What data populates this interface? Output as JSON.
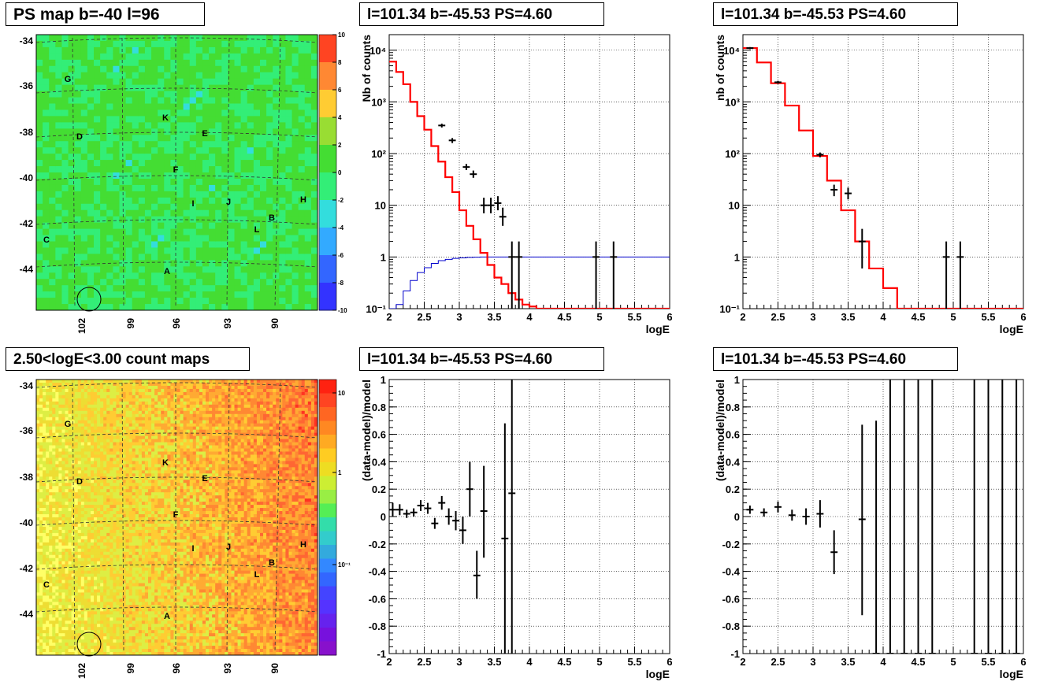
{
  "map_panels": [
    {
      "title": "PS map b=-40 l=96",
      "scale": "linear",
      "palette": "green",
      "colorbar_ticks": [
        "10",
        "8",
        "6",
        "4",
        "2",
        "0",
        "-2",
        "-4",
        "-6",
        "-8",
        "-10"
      ],
      "zlim": [
        -10,
        10
      ]
    },
    {
      "title": "2.50<logE<3.00 count maps",
      "scale": "log",
      "palette": "orange",
      "colorbar_ticks": [
        "10",
        "1",
        "10⁻¹"
      ],
      "zlim": [
        0.05,
        30
      ]
    }
  ],
  "map_axes": {
    "y_ticks": [
      "-34",
      "-36",
      "-38",
      "-40",
      "-42",
      "-44"
    ],
    "x_ticks": [
      "102",
      "99",
      "96",
      "93",
      "90"
    ],
    "source_labels": [
      "G",
      "K",
      "D",
      "E",
      "F",
      "I",
      "J",
      "H",
      "B",
      "L",
      "C",
      "A"
    ]
  },
  "spectrum_titles": [
    "l=101.34 b=-45.53 PS=4.60",
    "l=101.34 b=-45.53 PS=4.60",
    "l=101.34 b=-45.53 PS=4.60",
    "l=101.34 b=-45.53 PS=4.60"
  ],
  "chart_data": [
    {
      "type": "line",
      "title": "l=101.34 b=-45.53 PS=4.60",
      "xlabel": "logE",
      "ylabel": "Nb of counts",
      "xlim": [
        2,
        6
      ],
      "ylim": [
        0.1,
        20000
      ],
      "yscale": "log",
      "grid": true,
      "x_ticks": [
        "2",
        "2.5",
        "3",
        "3.5",
        "4",
        "4.5",
        "5",
        "5.5",
        "6"
      ],
      "y_ticks": [
        "10⁻¹",
        "1",
        "10",
        "10²",
        "10³",
        "10⁴"
      ],
      "model_color": "#ff0000",
      "background_color": "#0000cc",
      "model_steps": {
        "edges": [
          2.0,
          2.1,
          2.2,
          2.3,
          2.4,
          2.5,
          2.6,
          2.7,
          2.8,
          2.9,
          3.0,
          3.1,
          3.2,
          3.3,
          3.4,
          3.5,
          3.6,
          3.7,
          3.8,
          3.9,
          4.0,
          4.1,
          6.0
        ],
        "values": [
          6000,
          3800,
          2200,
          1000,
          530,
          290,
          140,
          70,
          35,
          18,
          8,
          4,
          2.2,
          1.2,
          0.7,
          0.4,
          0.3,
          0.2,
          0.15,
          0.12,
          0.11,
          0.1
        ]
      },
      "background_steps": {
        "edges": [
          2.0,
          2.1,
          2.2,
          2.3,
          2.4,
          2.5,
          2.6,
          2.7,
          2.8,
          2.9,
          3.0,
          3.1,
          3.2,
          3.3,
          3.4,
          3.5,
          6.0
        ],
        "values": [
          0.05,
          0.12,
          0.22,
          0.35,
          0.5,
          0.62,
          0.75,
          0.85,
          0.9,
          0.94,
          0.96,
          0.98,
          0.99,
          1.0,
          1.0,
          1.0
        ]
      },
      "data_points": [
        {
          "x": 2.75,
          "y": 350,
          "ylo": 320,
          "yhi": 380
        },
        {
          "x": 2.9,
          "y": 180,
          "ylo": 160,
          "yhi": 200
        },
        {
          "x": 3.1,
          "y": 55,
          "ylo": 48,
          "yhi": 63
        },
        {
          "x": 3.2,
          "y": 40,
          "ylo": 34,
          "yhi": 47
        },
        {
          "x": 3.35,
          "y": 10,
          "ylo": 7,
          "yhi": 14
        },
        {
          "x": 3.45,
          "y": 10,
          "ylo": 7,
          "yhi": 14
        },
        {
          "x": 3.55,
          "y": 11,
          "ylo": 8,
          "yhi": 15
        },
        {
          "x": 3.62,
          "y": 6,
          "ylo": 4,
          "yhi": 9
        },
        {
          "x": 3.75,
          "y": 1,
          "ylo": 0.1,
          "yhi": 2
        },
        {
          "x": 3.85,
          "y": 1,
          "ylo": 0.1,
          "yhi": 2
        },
        {
          "x": 4.95,
          "y": 1,
          "ylo": 0.1,
          "yhi": 2
        },
        {
          "x": 5.2,
          "y": 1,
          "ylo": 0.1,
          "yhi": 2
        }
      ]
    },
    {
      "type": "line",
      "title": "l=101.34 b=-45.53 PS=4.60",
      "xlabel": "logE",
      "ylabel": "nb of counts",
      "xlim": [
        2,
        6
      ],
      "ylim": [
        0.1,
        20000
      ],
      "yscale": "log",
      "grid": true,
      "x_ticks": [
        "2",
        "2.5",
        "3",
        "3.5",
        "4",
        "4.5",
        "5",
        "5.5",
        "6"
      ],
      "y_ticks": [
        "10⁻¹",
        "1",
        "10",
        "10²",
        "10³",
        "10⁴"
      ],
      "model_color": "#ff0000",
      "model_steps": {
        "edges": [
          2.0,
          2.2,
          2.4,
          2.6,
          2.8,
          3.0,
          3.2,
          3.4,
          3.6,
          3.8,
          4.0,
          4.2,
          6.0
        ],
        "values": [
          11000,
          5800,
          2300,
          850,
          280,
          90,
          30,
          8,
          2,
          0.6,
          0.25,
          0.1
        ]
      },
      "data_points": [
        {
          "x": 2.1,
          "y": 11000,
          "ylo": 10500,
          "yhi": 11500
        },
        {
          "x": 2.5,
          "y": 2400,
          "ylo": 2250,
          "yhi": 2550
        },
        {
          "x": 3.1,
          "y": 95,
          "ylo": 85,
          "yhi": 105
        },
        {
          "x": 3.3,
          "y": 20,
          "ylo": 15,
          "yhi": 25
        },
        {
          "x": 3.5,
          "y": 17,
          "ylo": 13,
          "yhi": 22
        },
        {
          "x": 3.7,
          "y": 2,
          "ylo": 0.6,
          "yhi": 3.5
        },
        {
          "x": 4.9,
          "y": 1,
          "ylo": 0.1,
          "yhi": 2
        },
        {
          "x": 5.1,
          "y": 1,
          "ylo": 0.1,
          "yhi": 2
        }
      ]
    },
    {
      "type": "scatter",
      "title": "l=101.34 b=-45.53 PS=4.60",
      "xlabel": "logE",
      "ylabel": "(data-model)/model",
      "xlim": [
        2,
        6
      ],
      "ylim": [
        -1,
        1
      ],
      "grid": true,
      "x_ticks": [
        "2",
        "2.5",
        "3",
        "3.5",
        "4",
        "4.5",
        "5",
        "5.5",
        "6"
      ],
      "y_ticks": [
        "-1",
        "-0.8",
        "-0.6",
        "-0.4",
        "-0.2",
        "0",
        "0.2",
        "0.4",
        "0.6",
        "0.8",
        "1"
      ],
      "data_points": [
        {
          "x": 2.05,
          "y": 0.05,
          "ylo": 0.0,
          "yhi": 0.1
        },
        {
          "x": 2.15,
          "y": 0.05,
          "ylo": 0.01,
          "yhi": 0.09
        },
        {
          "x": 2.25,
          "y": 0.02,
          "ylo": -0.01,
          "yhi": 0.05
        },
        {
          "x": 2.35,
          "y": 0.03,
          "ylo": 0.0,
          "yhi": 0.06
        },
        {
          "x": 2.45,
          "y": 0.08,
          "ylo": 0.04,
          "yhi": 0.12
        },
        {
          "x": 2.55,
          "y": 0.06,
          "ylo": 0.02,
          "yhi": 0.1
        },
        {
          "x": 2.65,
          "y": -0.05,
          "ylo": -0.09,
          "yhi": -0.01
        },
        {
          "x": 2.75,
          "y": 0.1,
          "ylo": 0.05,
          "yhi": 0.15
        },
        {
          "x": 2.85,
          "y": 0.0,
          "ylo": -0.06,
          "yhi": 0.06
        },
        {
          "x": 2.95,
          "y": -0.03,
          "ylo": -0.1,
          "yhi": 0.04
        },
        {
          "x": 3.05,
          "y": -0.1,
          "ylo": -0.2,
          "yhi": 0.0
        },
        {
          "x": 3.15,
          "y": 0.2,
          "ylo": 0.0,
          "yhi": 0.4
        },
        {
          "x": 3.25,
          "y": -0.43,
          "ylo": -0.6,
          "yhi": -0.25
        },
        {
          "x": 3.35,
          "y": 0.04,
          "ylo": -0.3,
          "yhi": 0.37
        },
        {
          "x": 3.65,
          "y": -0.16,
          "ylo": -1.0,
          "yhi": 0.68
        },
        {
          "x": 3.75,
          "y": 0.17,
          "ylo": -1.0,
          "yhi": 1.0
        }
      ]
    },
    {
      "type": "scatter",
      "title": "l=101.34 b=-45.53 PS=4.60",
      "xlabel": "logE",
      "ylabel": "(data-model)/model",
      "xlim": [
        2,
        6
      ],
      "ylim": [
        -1,
        1
      ],
      "grid": true,
      "x_ticks": [
        "2",
        "2.5",
        "3",
        "3.5",
        "4",
        "4.5",
        "5",
        "5.5",
        "6"
      ],
      "y_ticks": [
        "-1",
        "-0.8",
        "-0.6",
        "-0.4",
        "-0.2",
        "0",
        "0.2",
        "0.4",
        "0.6",
        "0.8",
        "1"
      ],
      "data_points": [
        {
          "x": 2.1,
          "y": 0.05,
          "ylo": 0.02,
          "yhi": 0.08
        },
        {
          "x": 2.3,
          "y": 0.03,
          "ylo": 0.0,
          "yhi": 0.06
        },
        {
          "x": 2.5,
          "y": 0.07,
          "ylo": 0.03,
          "yhi": 0.11
        },
        {
          "x": 2.7,
          "y": 0.01,
          "ylo": -0.03,
          "yhi": 0.05
        },
        {
          "x": 2.9,
          "y": 0.0,
          "ylo": -0.06,
          "yhi": 0.06
        },
        {
          "x": 3.1,
          "y": 0.02,
          "ylo": -0.08,
          "yhi": 0.12
        },
        {
          "x": 3.3,
          "y": -0.26,
          "ylo": -0.42,
          "yhi": -0.1
        },
        {
          "x": 3.7,
          "y": -0.02,
          "ylo": -0.72,
          "yhi": 0.67
        },
        {
          "x": 3.9,
          "y": -1.0,
          "ylo": -1.0,
          "yhi": 0.7
        },
        {
          "x": 4.1,
          "y": -1.0,
          "ylo": -1.0,
          "yhi": 1.0
        },
        {
          "x": 4.3,
          "y": -1.0,
          "ylo": -1.0,
          "yhi": 1.0
        },
        {
          "x": 4.5,
          "y": -1.0,
          "ylo": -1.0,
          "yhi": 1.0
        },
        {
          "x": 4.7,
          "y": -1.0,
          "ylo": -1.0,
          "yhi": 1.0
        },
        {
          "x": 5.3,
          "y": -1.0,
          "ylo": -1.0,
          "yhi": 1.0
        },
        {
          "x": 5.5,
          "y": -1.0,
          "ylo": -1.0,
          "yhi": 1.0
        },
        {
          "x": 5.7,
          "y": -1.0,
          "ylo": -1.0,
          "yhi": 1.0
        },
        {
          "x": 5.9,
          "y": -1.0,
          "ylo": -1.0,
          "yhi": 1.0
        }
      ]
    }
  ]
}
